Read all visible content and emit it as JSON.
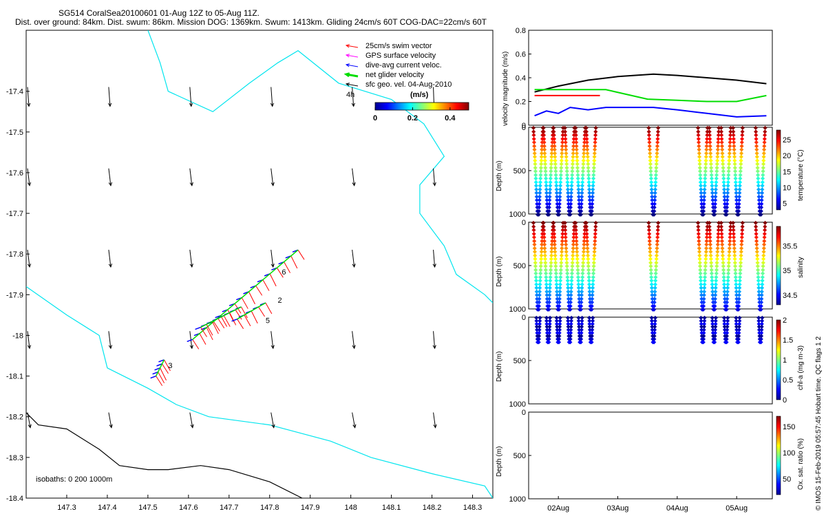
{
  "header": {
    "line1": "SG514 CoralSea20100601 01-Aug 12Z to 05-Aug 11Z.",
    "line2": "Dist. over ground: 84km. Dist. swum: 86km. Mission DOG: 1369km. Swum: 1413km. Gliding 24cm/s 60T COG-DAC=22cm/s 60T"
  },
  "side_note": "© IMOS 15-Feb-2019 05:57:45 Hobart time. QC flags 1  2",
  "colors": {
    "swim": "#ff0000",
    "gps": "#ff00ff",
    "dac": "#0000ff",
    "net": "#00dd00",
    "geo": "#000000",
    "coast": "#00e5ee",
    "isobath": "#000000"
  },
  "chart_data": [
    {
      "type": "scatter",
      "name": "map",
      "xlim": [
        147.2,
        148.35
      ],
      "ylim": [
        -18.4,
        -17.25
      ],
      "xticks": [
        147.3,
        147.4,
        147.5,
        147.6,
        147.7,
        147.8,
        147.9,
        148,
        148.1,
        148.2,
        148.3
      ],
      "xtick_labels": [
        "147.3",
        "147.4",
        "147.5",
        "147.6",
        "147.7",
        "147.8",
        "147.9",
        "148",
        "148.1",
        "148.2",
        "148.3"
      ],
      "yticks": [
        -17.4,
        -17.5,
        -17.6,
        -17.7,
        -17.8,
        -17.9,
        -18,
        -18.1,
        -18.2,
        -18.3,
        -18.4
      ],
      "ytick_labels": [
        "-17.4",
        "-17.5",
        "-17.6",
        "-17.7",
        "-17.8",
        "-17.9",
        "-18",
        "-18.1",
        "-18.2",
        "-18.3",
        "-18.4"
      ],
      "legend": [
        {
          "label": "25cm/s swim vector",
          "color": "#ff0000"
        },
        {
          "label": "GPS surface velocity",
          "color": "#ff00ff"
        },
        {
          "label": "dive-avg current veloc.",
          "color": "#0000ff"
        },
        {
          "label": "net glider velocity",
          "color": "#00dd00"
        },
        {
          "label": "sfc geo. vel. 04-Aug-2010",
          "color": "#000000"
        }
      ],
      "legend_extra": "4h",
      "colorbar_title": "(m/s)",
      "colorbar_ticks": [
        "0",
        "0.2",
        "0.4"
      ],
      "isobath_label": "isobaths: 0   200   1000m",
      "coast_0m": [
        [
          147.5,
          -17.25
        ],
        [
          147.53,
          -17.33
        ],
        [
          147.55,
          -17.4
        ],
        [
          147.66,
          -17.45
        ],
        [
          147.75,
          -17.38
        ],
        [
          147.82,
          -17.33
        ],
        [
          147.87,
          -17.3
        ],
        [
          147.97,
          -17.38
        ],
        [
          148.1,
          -17.42
        ],
        [
          148.18,
          -17.48
        ],
        [
          148.23,
          -17.56
        ],
        [
          148.17,
          -17.63
        ],
        [
          148.17,
          -17.7
        ],
        [
          148.23,
          -17.78
        ],
        [
          148.26,
          -17.85
        ],
        [
          148.33,
          -17.9
        ],
        [
          148.35,
          -17.92
        ]
      ],
      "coast_200m": [
        [
          147.2,
          -17.88
        ],
        [
          147.3,
          -17.95
        ],
        [
          147.38,
          -18.0
        ],
        [
          147.4,
          -18.08
        ],
        [
          147.5,
          -18.13
        ],
        [
          147.57,
          -18.17
        ],
        [
          147.65,
          -18.2
        ],
        [
          147.8,
          -18.22
        ],
        [
          147.95,
          -18.26
        ],
        [
          148.05,
          -18.3
        ],
        [
          148.2,
          -18.34
        ],
        [
          148.33,
          -18.37
        ],
        [
          148.35,
          -18.4
        ]
      ],
      "isobath_1000m": [
        [
          147.2,
          -18.19
        ],
        [
          147.23,
          -18.22
        ],
        [
          147.3,
          -18.23
        ],
        [
          147.38,
          -18.28
        ],
        [
          147.43,
          -18.32
        ],
        [
          147.5,
          -18.33
        ],
        [
          147.55,
          -18.33
        ],
        [
          147.63,
          -18.32
        ],
        [
          147.7,
          -18.33
        ],
        [
          147.8,
          -18.36
        ],
        [
          147.88,
          -18.4
        ]
      ],
      "dive_labels": [
        {
          "text": "3",
          "lon": 147.55,
          "lat": -18.08
        },
        {
          "text": "5",
          "lon": 147.79,
          "lat": -17.97
        },
        {
          "text": "6",
          "lon": 147.83,
          "lat": -17.85
        },
        {
          "text": "2",
          "lon": 147.82,
          "lat": -17.92
        }
      ],
      "geo_vectors": {
        "lons": [
          147.2,
          147.4,
          147.6,
          147.8,
          148.0,
          148.2
        ],
        "lats": [
          -17.42,
          -17.62,
          -17.82,
          -18.02,
          -18.22
        ],
        "dx": [
          2,
          3,
          3,
          3,
          4
        ],
        "dy": [
          28,
          25,
          25,
          25,
          22
        ]
      }
    },
    {
      "type": "line",
      "name": "velocity",
      "ylabel": "velocity magnitude (m/s)",
      "ylim": [
        0,
        0.8
      ],
      "yticks": [
        0,
        0.2,
        0.4,
        0.6,
        0.8
      ],
      "ytick_labels": [
        "0",
        "0.2",
        "0.4",
        "0.6",
        "0.8"
      ],
      "series": [
        {
          "color": "#000000",
          "x": [
            1.6,
            2.0,
            2.5,
            3.0,
            3.6,
            4.0,
            4.5,
            5.0,
            5.5
          ],
          "y": [
            0.28,
            0.33,
            0.38,
            0.41,
            0.43,
            0.42,
            0.4,
            0.38,
            0.35
          ]
        },
        {
          "color": "#00dd00",
          "x": [
            1.6,
            1.9,
            2.2,
            2.5,
            2.8,
            3.5,
            4.0,
            4.5,
            5.0,
            5.5
          ],
          "y": [
            0.3,
            0.3,
            0.3,
            0.3,
            0.3,
            0.22,
            0.21,
            0.2,
            0.2,
            0.25
          ]
        },
        {
          "color": "#0000ff",
          "x": [
            1.6,
            1.8,
            2.0,
            2.2,
            2.5,
            2.8,
            3.2,
            3.6,
            4.0,
            4.5,
            5.0,
            5.5
          ],
          "y": [
            0.08,
            0.12,
            0.1,
            0.15,
            0.13,
            0.15,
            0.15,
            0.15,
            0.13,
            0.1,
            0.07,
            0.08
          ]
        },
        {
          "color": "#ff0000",
          "x": [
            1.6,
            2.7
          ],
          "y": [
            0.25,
            0.25
          ]
        }
      ]
    },
    {
      "type": "scatter",
      "name": "temperature",
      "ylabel": "Depth (m)",
      "ylim": [
        0,
        1000
      ],
      "yticks": [
        0,
        500,
        1000
      ],
      "colorbar_label": "temperature (°C)",
      "colorbar_ticks": [
        "5",
        "10",
        "15",
        "20",
        "25"
      ],
      "color_range": [
        3,
        28
      ]
    },
    {
      "type": "scatter",
      "name": "salinity",
      "ylabel": "Depth (m)",
      "ylim": [
        0,
        1000
      ],
      "yticks": [
        0,
        500,
        1000
      ],
      "colorbar_label": "salinity",
      "colorbar_ticks": [
        "34.5",
        "35",
        "35.5"
      ],
      "color_range": [
        34.3,
        35.9
      ]
    },
    {
      "type": "scatter",
      "name": "chla",
      "ylabel": "Depth (m)",
      "ylim": [
        0,
        1000
      ],
      "yticks": [
        0,
        500,
        1000
      ],
      "colorbar_label": "chl-a (mg m-3)",
      "colorbar_ticks": [
        "0",
        "0.5",
        "1",
        "1.5",
        "2"
      ],
      "color_range": [
        0,
        2
      ]
    },
    {
      "type": "scatter",
      "name": "oxygen",
      "ylabel": "Depth (m)",
      "ylim": [
        0,
        1000
      ],
      "yticks": [
        0,
        500,
        1000
      ],
      "colorbar_label": "Ox. sat. ratio (%)",
      "colorbar_ticks": [
        "50",
        "100",
        "150"
      ],
      "color_range": [
        20,
        170
      ],
      "xticks": [
        2,
        3,
        4,
        5
      ],
      "xtick_labels": [
        "02Aug",
        "03Aug",
        "04Aug",
        "05Aug"
      ],
      "xlim": [
        1.5,
        5.6
      ]
    }
  ]
}
